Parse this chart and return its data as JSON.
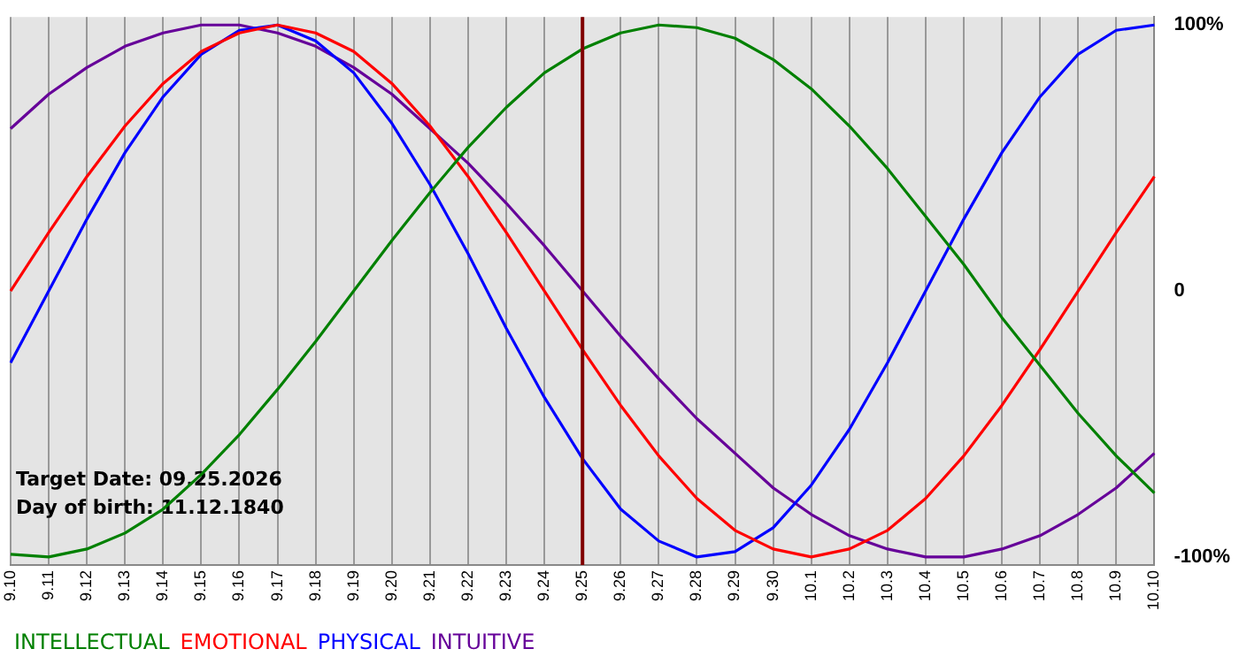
{
  "chart_data": {
    "type": "line",
    "categories": [
      "9.10",
      "9.11",
      "9.12",
      "9.13",
      "9.14",
      "9.15",
      "9.16",
      "9.17",
      "9.18",
      "9.19",
      "9.20",
      "9.21",
      "9.22",
      "9.23",
      "9.24",
      "9.25",
      "9.26",
      "9.27",
      "9.28",
      "9.29",
      "9.30",
      "10.1",
      "10.2",
      "10.3",
      "10.4",
      "10.5",
      "10.6",
      "10.7",
      "10.8",
      "10.9",
      "10.10"
    ],
    "series": [
      {
        "name": "INTELLECTUAL",
        "color": "#008000",
        "values": [
          -99,
          -100,
          -97,
          -91,
          -82,
          -69,
          -54,
          -37,
          -19,
          0,
          19,
          37,
          54,
          69,
          82,
          91,
          97,
          100,
          99,
          95,
          87,
          76,
          62,
          46,
          28,
          10,
          -10,
          -28,
          -46,
          -62,
          -76
        ]
      },
      {
        "name": "EMOTIONAL",
        "color": "#ff0000",
        "values": [
          0,
          22,
          43,
          62,
          78,
          90,
          97,
          100,
          97,
          90,
          78,
          62,
          43,
          22,
          0,
          -22,
          -43,
          -62,
          -78,
          -90,
          -97,
          -100,
          -97,
          -90,
          -78,
          -62,
          -43,
          -22,
          0,
          22,
          43
        ]
      },
      {
        "name": "PHYSICAL",
        "color": "#0000ff",
        "values": [
          -27,
          0,
          27,
          52,
          73,
          89,
          98,
          100,
          94,
          82,
          63,
          40,
          14,
          -14,
          -40,
          -63,
          -82,
          -94,
          -100,
          -98,
          -89,
          -73,
          -52,
          -27,
          0,
          27,
          52,
          73,
          89,
          98,
          100
        ]
      },
      {
        "name": "INTUITIVE",
        "color": "#660099",
        "values": [
          61,
          74,
          84,
          92,
          97,
          100,
          100,
          97,
          92,
          84,
          74,
          61,
          48,
          33,
          17,
          0,
          -17,
          -33,
          -48,
          -61,
          -74,
          -84,
          -92,
          -97,
          -100,
          -100,
          -97,
          -92,
          -84,
          -74,
          -61
        ]
      }
    ],
    "ylim": [
      -103,
      103
    ],
    "yticks": [
      {
        "value": 100,
        "label": "100%"
      },
      0,
      {
        "value": -100,
        "label": "-100%"
      }
    ],
    "grid": "x",
    "legend": "bottom",
    "marker": "none",
    "line_style": "solid",
    "ref_lines": [
      {
        "axis": "x",
        "value": "9.25",
        "color": "#800000"
      }
    ],
    "annotations": [
      "Target Date: 09.25.2026",
      "Day of birth: 11.12.1840"
    ]
  }
}
